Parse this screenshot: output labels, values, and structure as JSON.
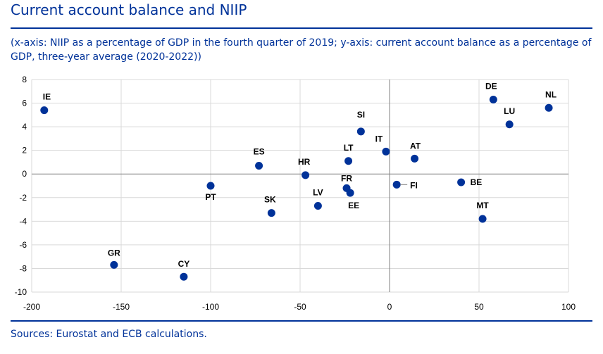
{
  "title": "Current account balance and NIIP",
  "subtitle": "(x-axis: NIIP as a percentage of GDP in the fourth quarter of 2019; y-axis: current account balance as a percentage of GDP, three-year average (2020-2022))",
  "source": "Sources: Eurostat and ECB calculations.",
  "colors": {
    "accent": "#003299",
    "point": "#003299",
    "grid": "#d9d9d9",
    "axis": "#808080"
  },
  "chart_data": {
    "type": "scatter",
    "title": "Current account balance and NIIP",
    "xlabel": "NIIP as a percentage of GDP in the fourth quarter of 2019",
    "ylabel": "current account balance as a percentage of GDP, three-year average (2020-2022)",
    "xlim": [
      -200,
      100
    ],
    "ylim": [
      -10,
      8
    ],
    "xticks": [
      -200,
      -150,
      -100,
      -50,
      0,
      50,
      100
    ],
    "yticks": [
      -10,
      -8,
      -6,
      -4,
      -2,
      0,
      2,
      4,
      6,
      8
    ],
    "grid": true,
    "points": [
      {
        "label": "IE",
        "x": -193,
        "y": 5.4
      },
      {
        "label": "GR",
        "x": -154,
        "y": -7.7
      },
      {
        "label": "CY",
        "x": -115,
        "y": -8.7
      },
      {
        "label": "PT",
        "x": -100,
        "y": -1.0
      },
      {
        "label": "ES",
        "x": -73,
        "y": 0.7
      },
      {
        "label": "SK",
        "x": -66,
        "y": -3.3
      },
      {
        "label": "HR",
        "x": -47,
        "y": -0.1
      },
      {
        "label": "LV",
        "x": -40,
        "y": -2.7
      },
      {
        "label": "FR",
        "x": -24,
        "y": -1.2
      },
      {
        "label": "EE",
        "x": -22,
        "y": -1.6
      },
      {
        "label": "LT",
        "x": -23,
        "y": 1.1
      },
      {
        "label": "SI",
        "x": -16,
        "y": 3.6
      },
      {
        "label": "IT",
        "x": -2,
        "y": 1.9
      },
      {
        "label": "FI",
        "x": 4,
        "y": -0.9
      },
      {
        "label": "AT",
        "x": 14,
        "y": 1.3
      },
      {
        "label": "BE",
        "x": 40,
        "y": -0.7
      },
      {
        "label": "MT",
        "x": 52,
        "y": -3.8
      },
      {
        "label": "DE",
        "x": 58,
        "y": 6.3
      },
      {
        "label": "LU",
        "x": 67,
        "y": 4.2
      },
      {
        "label": "NL",
        "x": 89,
        "y": 5.6
      }
    ]
  }
}
